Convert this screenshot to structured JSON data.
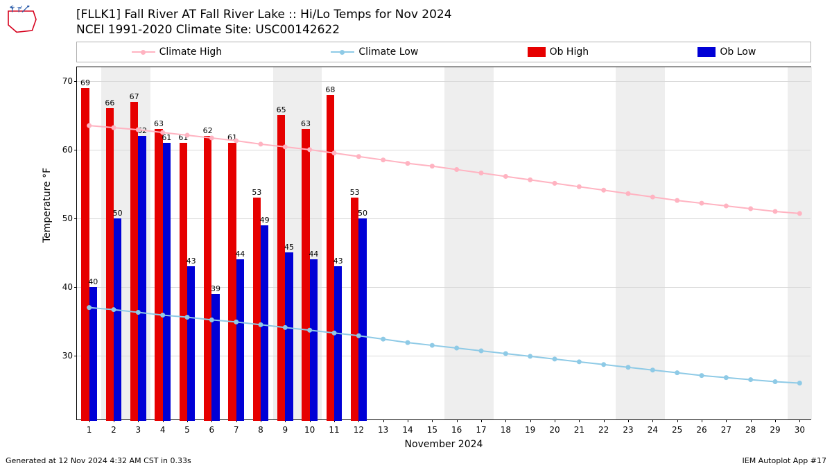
{
  "title_line1": "[FLLK1] Fall River  AT Fall River Lake :: Hi/Lo Temps for Nov 2024",
  "title_line2": "NCEI 1991-2020 Climate Site: USC00142622",
  "footer_left": "Generated at 12 Nov 2024 4:32 AM CST in 0.33s",
  "footer_right": "IEM Autoplot App #17",
  "ylabel": "Temperature °F",
  "xlabel": "November 2024",
  "legend": {
    "climate_high": "Climate High",
    "climate_low": "Climate Low",
    "ob_high": "Ob High",
    "ob_low": "Ob Low"
  },
  "colors": {
    "climate_high": "#ffb3c1",
    "climate_low": "#8ecae6",
    "ob_high": "#e60000",
    "ob_low": "#0000d6",
    "weekend_band": "#eeeeee",
    "grid": "#d9d9d9",
    "axis": "#000000",
    "bg": "#ffffff",
    "text": "#000000",
    "logo_red": "#d6001c",
    "logo_blue": "#2a5caa"
  },
  "chart": {
    "type": "bar+line",
    "days": [
      1,
      2,
      3,
      4,
      5,
      6,
      7,
      8,
      9,
      10,
      11,
      12,
      13,
      14,
      15,
      16,
      17,
      18,
      19,
      20,
      21,
      22,
      23,
      24,
      25,
      26,
      27,
      28,
      29,
      30
    ],
    "ob_high": [
      69,
      66,
      67,
      63,
      61,
      62,
      61,
      53,
      65,
      63,
      68,
      53,
      null,
      null,
      null,
      null,
      null,
      null,
      null,
      null,
      null,
      null,
      null,
      null,
      null,
      null,
      null,
      null,
      null,
      null
    ],
    "ob_low": [
      40,
      50,
      62,
      61,
      43,
      39,
      44,
      49,
      45,
      44,
      43,
      50,
      null,
      null,
      null,
      null,
      null,
      null,
      null,
      null,
      null,
      null,
      null,
      null,
      null,
      null,
      null,
      null,
      null,
      null
    ],
    "climate_high": [
      63.5,
      63.2,
      62.9,
      62.5,
      62.1,
      61.7,
      61.3,
      60.8,
      60.4,
      60.0,
      59.5,
      59.0,
      58.5,
      58.0,
      57.6,
      57.1,
      56.6,
      56.1,
      55.6,
      55.1,
      54.6,
      54.1,
      53.6,
      53.1,
      52.6,
      52.2,
      51.8,
      51.4,
      51.0,
      50.7
    ],
    "climate_low": [
      37.0,
      36.7,
      36.3,
      35.9,
      35.6,
      35.2,
      34.9,
      34.5,
      34.1,
      33.7,
      33.3,
      32.9,
      32.4,
      31.9,
      31.5,
      31.1,
      30.7,
      30.3,
      29.9,
      29.5,
      29.1,
      28.7,
      28.3,
      27.9,
      27.5,
      27.1,
      26.8,
      26.5,
      26.2,
      26.0
    ],
    "ylim": [
      20.5,
      72
    ],
    "yticks": [
      30,
      40,
      50,
      60,
      70
    ],
    "xlim": [
      0.5,
      30.5
    ],
    "weekend_days": [
      2,
      3,
      9,
      10,
      16,
      17,
      23,
      24,
      30
    ],
    "bar_width": 0.32,
    "line_width": 2,
    "marker_radius": 3.5,
    "title_fontsize": 17,
    "axis_label_fontsize": 14,
    "tick_fontsize": 12,
    "bar_label_fontsize": 11
  }
}
